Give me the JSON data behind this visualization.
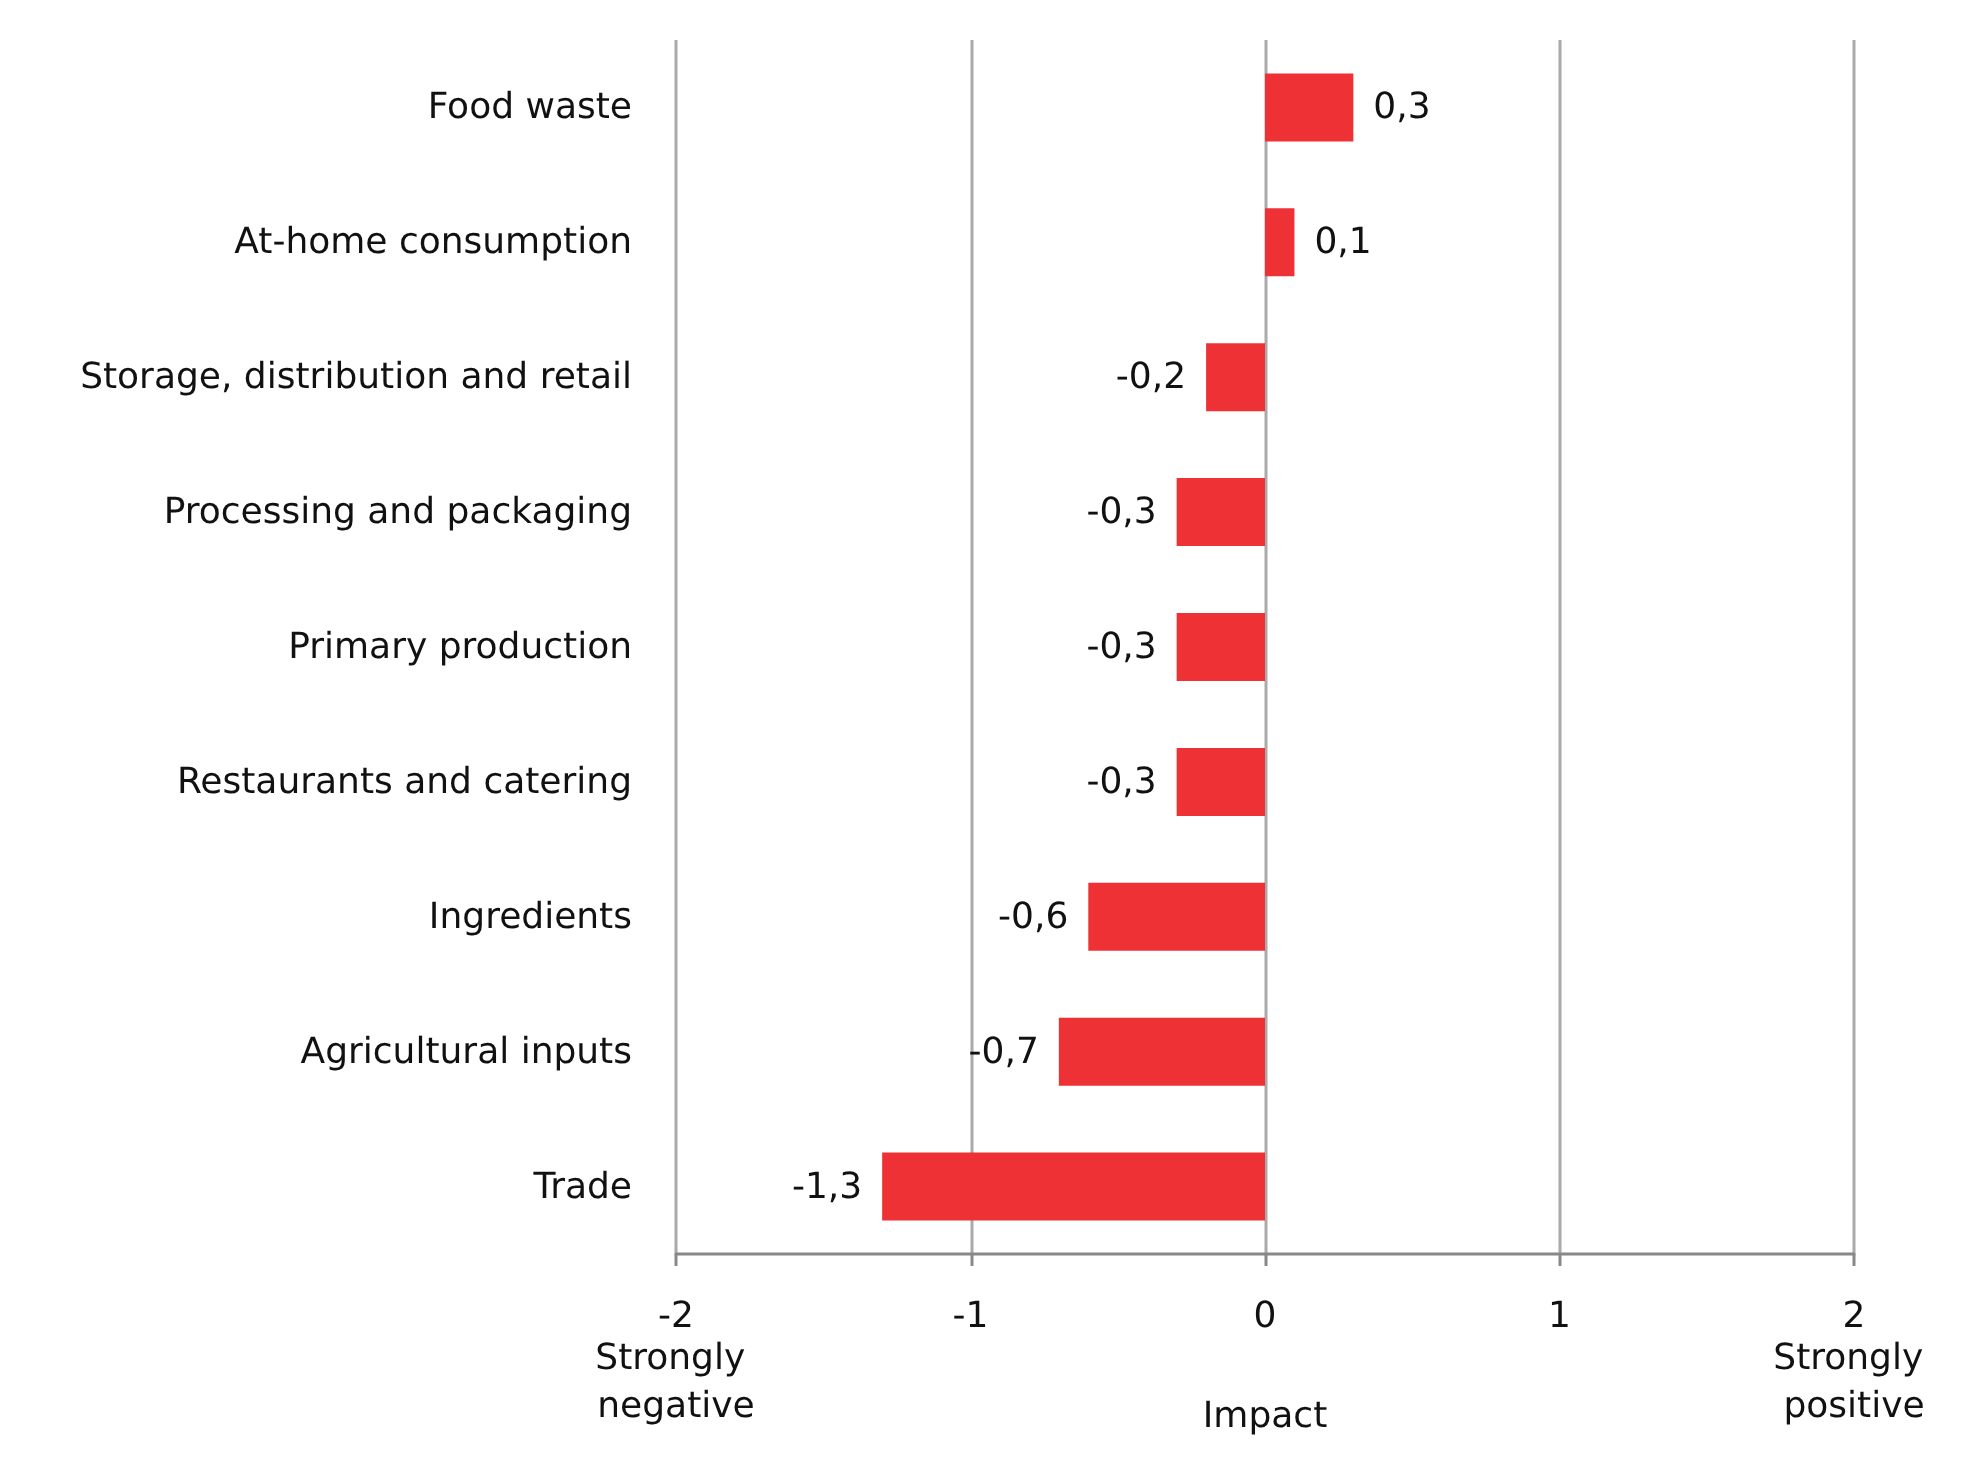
{
  "chart_data": {
    "type": "bar",
    "orientation": "horizontal",
    "categories": [
      "Food waste",
      "At-home consumption",
      "Storage, distribution and retail",
      "Processing and packaging",
      "Primary production",
      "Restaurants and catering",
      "Ingredients",
      "Agricultural inputs",
      "Trade"
    ],
    "values": [
      0.3,
      0.1,
      -0.2,
      -0.3,
      -0.3,
      -0.3,
      -0.6,
      -0.7,
      -1.3
    ],
    "value_labels": [
      "0,3",
      "0,1",
      "-0,2",
      "-0,3",
      "-0,3",
      "-0,3",
      "-0,6",
      "-0,7",
      "-1,3"
    ],
    "color": "#ee3135",
    "xlim": [
      -2,
      2
    ],
    "xticks": [
      -2,
      -1,
      0,
      1,
      2
    ],
    "grid": "x",
    "xlabel": "Impact",
    "annotations": [
      "Strongly negative",
      "Strongly positive"
    ]
  }
}
